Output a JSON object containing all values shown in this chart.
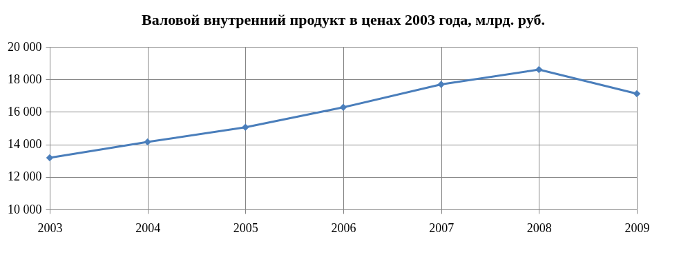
{
  "chart_data": {
    "type": "line",
    "title": "Валовой внутренний продукт в ценах 2003 года, млрд. руб.",
    "categories": [
      "2003",
      "2004",
      "2005",
      "2006",
      "2007",
      "2008",
      "2009"
    ],
    "series": [
      {
        "color": "#4a7ebb",
        "values": [
          13180,
          14150,
          15050,
          16280,
          17690,
          18600,
          17120
        ]
      }
    ],
    "ylim": [
      10000,
      20000
    ],
    "yticks": [
      {
        "value": 10000,
        "label": "10 000"
      },
      {
        "value": 12000,
        "label": "12 000"
      },
      {
        "value": 14000,
        "label": "14 000"
      },
      {
        "value": 16000,
        "label": "16 000"
      },
      {
        "value": 18000,
        "label": "18 000"
      },
      {
        "value": 20000,
        "label": "20 000"
      }
    ],
    "grid": true,
    "marker": "diamond",
    "line_style": "solid"
  }
}
